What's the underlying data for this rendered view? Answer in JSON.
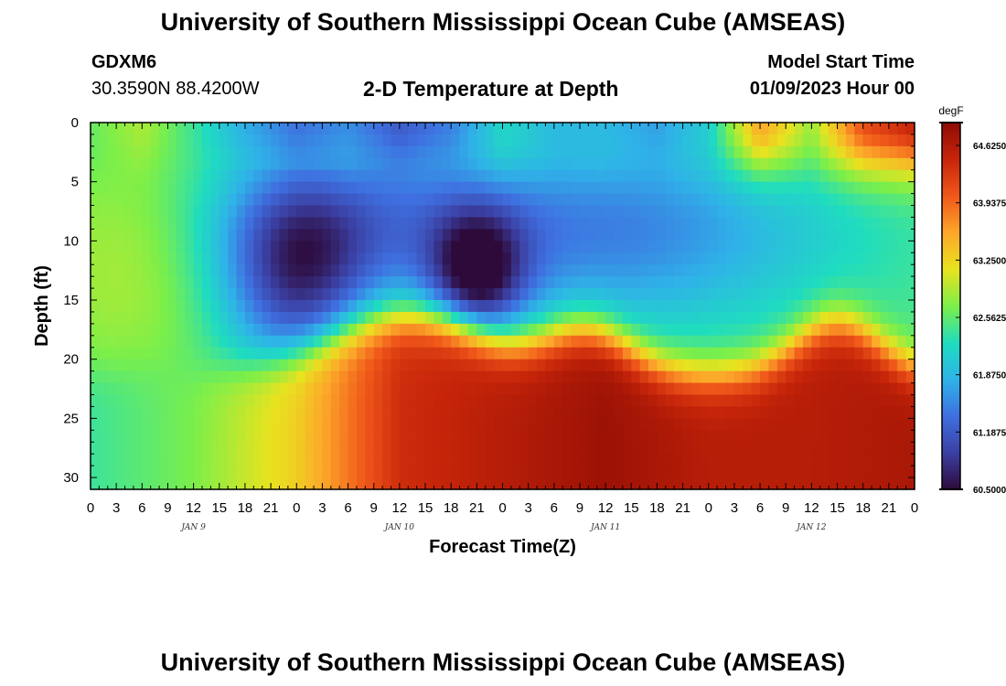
{
  "header": {
    "title": "University of Southern Mississippi Ocean Cube (AMSEAS)",
    "station_id": "GDXM6",
    "coordinates": "30.3590N  88.4200W",
    "subtitle": "2-D Temperature at Depth",
    "start_label": "Model Start Time",
    "start_value": "01/09/2023 Hour 00"
  },
  "footer": {
    "title": "University of Southern Mississippi Ocean Cube (AMSEAS)"
  },
  "chart_data": {
    "type": "heatmap",
    "title": "2-D Temperature at Depth",
    "xlabel": "Forecast Time(Z)",
    "ylabel": "Depth (ft)",
    "x_range_hours": [
      0,
      96
    ],
    "y_range_ft": [
      0,
      31
    ],
    "y_inverted": true,
    "x_tick_labels": [
      "0",
      "3",
      "6",
      "9",
      "12",
      "15",
      "18",
      "21",
      "0",
      "3",
      "6",
      "9",
      "12",
      "15",
      "18",
      "21",
      "0",
      "3",
      "6",
      "9",
      "12",
      "15",
      "18",
      "21",
      "0",
      "3",
      "6",
      "9",
      "12",
      "15",
      "18",
      "21",
      "0"
    ],
    "x_day_labels": [
      {
        "label": "JAN 9",
        "hour": 12
      },
      {
        "label": "JAN 10",
        "hour": 36
      },
      {
        "label": "JAN 11",
        "hour": 60
      },
      {
        "label": "JAN 12",
        "hour": 84
      }
    ],
    "y_ticks": [
      0,
      5,
      10,
      15,
      20,
      25,
      30
    ],
    "colorbar": {
      "unit": "degF",
      "min": 60.5,
      "max": 64.9,
      "tick_labels": [
        "64.6250",
        "63.9375",
        "63.2500",
        "62.5625",
        "61.8750",
        "61.1875",
        "60.5000"
      ],
      "tick_values": [
        64.625,
        63.9375,
        63.25,
        62.5625,
        61.875,
        61.1875,
        60.5
      ],
      "colors": [
        "#2d0a3a",
        "#3b3fa2",
        "#3f6fe0",
        "#2fb2e8",
        "#1fdcc0",
        "#7bef4a",
        "#e8e31f",
        "#fca82a",
        "#f0581a",
        "#c8260a",
        "#8f0c04"
      ]
    },
    "field": {
      "description": "Interpolated temperature field (degF) by forecast hour and depth",
      "surface_temps_by_hour": [
        [
          0,
          62.6
        ],
        [
          6,
          62.9
        ],
        [
          12,
          62.4
        ],
        [
          18,
          61.8
        ],
        [
          24,
          61.4
        ],
        [
          30,
          61.6
        ],
        [
          36,
          61.2
        ],
        [
          42,
          61.5
        ],
        [
          48,
          62.2
        ],
        [
          54,
          61.9
        ],
        [
          60,
          61.9
        ],
        [
          66,
          61.7
        ],
        [
          72,
          62.1
        ],
        [
          78,
          63.6
        ],
        [
          84,
          62.8
        ],
        [
          90,
          64.1
        ],
        [
          96,
          64.5
        ]
      ],
      "bottom_temps_by_hour": [
        [
          0,
          62.4
        ],
        [
          12,
          62.7
        ],
        [
          24,
          63.3
        ],
        [
          36,
          64.4
        ],
        [
          48,
          64.6
        ],
        [
          60,
          64.8
        ],
        [
          72,
          64.6
        ],
        [
          84,
          64.6
        ],
        [
          96,
          64.7
        ]
      ]
    }
  }
}
